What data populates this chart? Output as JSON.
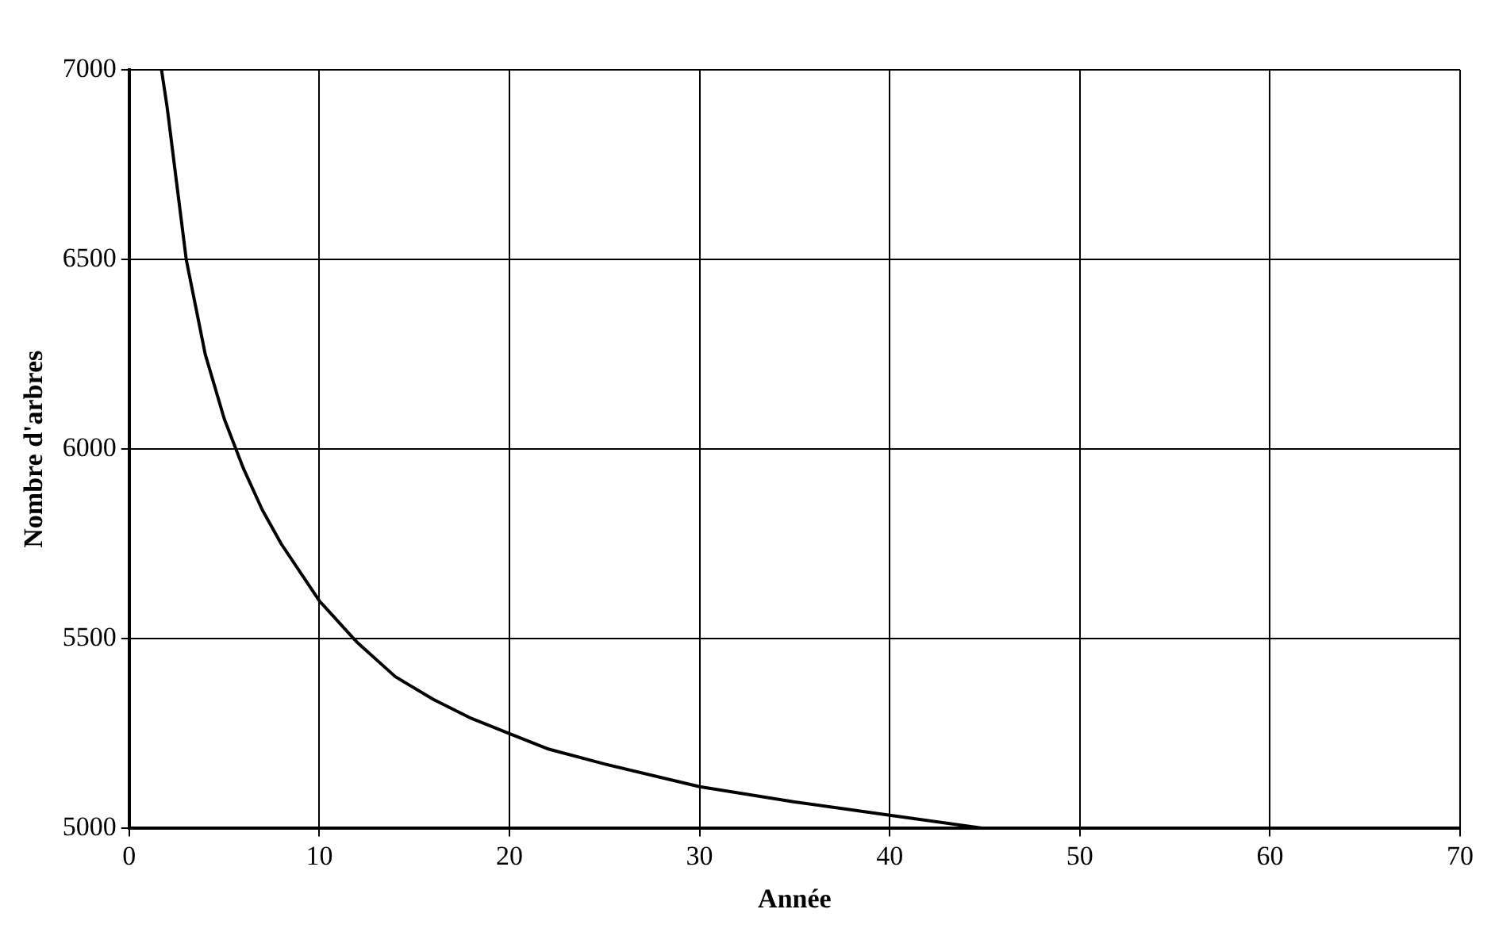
{
  "chart_data": {
    "type": "line",
    "xlabel": "Année",
    "ylabel": "Nombre d'arbres",
    "series": [
      {
        "color": "#000000",
        "x": [
          1.7,
          2,
          2.5,
          3,
          4,
          5,
          6,
          7,
          8,
          10,
          12,
          14,
          16,
          18,
          20,
          22,
          25,
          30,
          35,
          40,
          45
        ],
        "values": [
          7000,
          6900,
          6700,
          6500,
          6250,
          6080,
          5950,
          5840,
          5750,
          5600,
          5490,
          5400,
          5340,
          5290,
          5250,
          5210,
          5170,
          5110,
          5070,
          5035,
          5000
        ]
      }
    ],
    "xlim": [
      0,
      70
    ],
    "xticks": [
      0,
      10,
      20,
      30,
      40,
      50,
      60,
      70
    ],
    "ylim": [
      5000,
      7000
    ],
    "yticks": [
      5000,
      5500,
      6000,
      6500,
      7000
    ],
    "grid": true,
    "legend": false,
    "marker": "none",
    "line_style": "solid"
  }
}
